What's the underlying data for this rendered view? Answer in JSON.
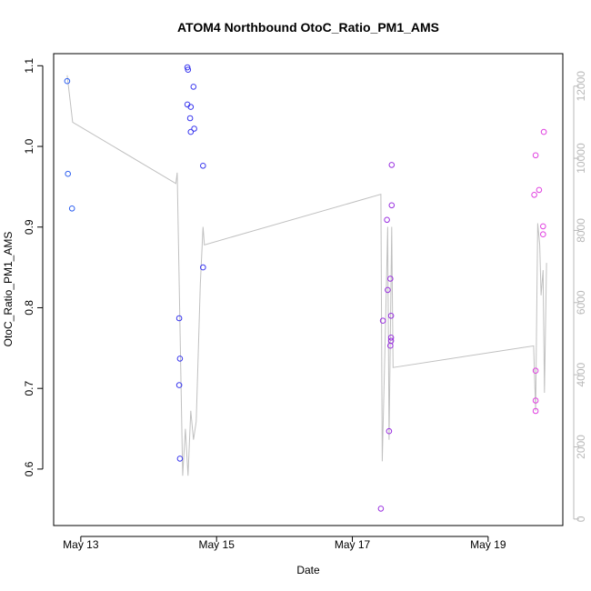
{
  "chart_data": {
    "type": "scatter",
    "title": "ATOM4 Northbound OtoC_Ratio_PM1_AMS",
    "xlabel": "Date",
    "ylabel": "OtoC_Ratio_PM1_AMS",
    "xlim": [
      12.6,
      20.1
    ],
    "ylim": [
      0.53,
      1.115
    ],
    "y2lim": [
      -180,
      12900
    ],
    "x_ticks": [
      13,
      15,
      17,
      19
    ],
    "x_tick_labels": [
      "May 13",
      "May 15",
      "May 17",
      "May 19"
    ],
    "y_ticks": [
      0.6,
      0.7,
      0.8,
      0.9,
      1.0,
      1.1
    ],
    "y_tick_labels": [
      "0.6",
      "0.7",
      "0.8",
      "0.9",
      "1.0",
      "1.1"
    ],
    "y2_ticks": [
      0,
      2000,
      4000,
      6000,
      8000,
      10000,
      12000
    ],
    "y2_tick_labels": [
      "0",
      "2000",
      "4000",
      "6000",
      "8000",
      "10000",
      "12000"
    ],
    "line_color": "#c0c0c0",
    "axis_color": "#000000",
    "right_axis_color": "#b8b8b8",
    "series": [
      {
        "name": "OtoC_Ratio_PM1_AMS",
        "points": [
          {
            "x": 12.8,
            "y": 1.081,
            "color": "#2d5ff0"
          },
          {
            "x": 12.81,
            "y": 0.966,
            "color": "#2d5ff0"
          },
          {
            "x": 12.87,
            "y": 0.923,
            "color": "#2d5ff0"
          },
          {
            "x": 14.57,
            "y": 1.098,
            "color": "#3a38ee"
          },
          {
            "x": 14.58,
            "y": 1.095,
            "color": "#3a38ee"
          },
          {
            "x": 14.66,
            "y": 1.074,
            "color": "#3a38ee"
          },
          {
            "x": 14.57,
            "y": 1.052,
            "color": "#3a38ee"
          },
          {
            "x": 14.62,
            "y": 1.049,
            "color": "#3a38ee"
          },
          {
            "x": 14.61,
            "y": 1.035,
            "color": "#3a38ee"
          },
          {
            "x": 14.67,
            "y": 1.022,
            "color": "#3a38ee"
          },
          {
            "x": 14.62,
            "y": 1.018,
            "color": "#3a38ee"
          },
          {
            "x": 14.8,
            "y": 0.976,
            "color": "#3a38ee"
          },
          {
            "x": 14.8,
            "y": 0.85,
            "color": "#3a38ee"
          },
          {
            "x": 14.45,
            "y": 0.787,
            "color": "#3a38ee"
          },
          {
            "x": 14.46,
            "y": 0.737,
            "color": "#3a38ee"
          },
          {
            "x": 14.45,
            "y": 0.704,
            "color": "#3a38ee"
          },
          {
            "x": 14.46,
            "y": 0.613,
            "color": "#3a38ee"
          },
          {
            "x": 17.58,
            "y": 0.977,
            "color": "#9a30e0"
          },
          {
            "x": 17.58,
            "y": 0.927,
            "color": "#9a30e0"
          },
          {
            "x": 17.51,
            "y": 0.909,
            "color": "#9a30e0"
          },
          {
            "x": 17.56,
            "y": 0.836,
            "color": "#9a30e0"
          },
          {
            "x": 17.52,
            "y": 0.822,
            "color": "#9a30e0"
          },
          {
            "x": 17.57,
            "y": 0.79,
            "color": "#9a30e0"
          },
          {
            "x": 17.45,
            "y": 0.784,
            "color": "#9a30e0"
          },
          {
            "x": 17.57,
            "y": 0.763,
            "color": "#9a30e0"
          },
          {
            "x": 17.57,
            "y": 0.759,
            "color": "#9a30e0"
          },
          {
            "x": 17.56,
            "y": 0.753,
            "color": "#9a30e0"
          },
          {
            "x": 17.54,
            "y": 0.647,
            "color": "#9a30e0"
          },
          {
            "x": 17.42,
            "y": 0.551,
            "color": "#9a30e0"
          },
          {
            "x": 19.82,
            "y": 1.018,
            "color": "#e040e0"
          },
          {
            "x": 19.7,
            "y": 0.989,
            "color": "#e040e0"
          },
          {
            "x": 19.75,
            "y": 0.946,
            "color": "#e040e0"
          },
          {
            "x": 19.68,
            "y": 0.94,
            "color": "#e040e0"
          },
          {
            "x": 19.81,
            "y": 0.901,
            "color": "#e040e0"
          },
          {
            "x": 19.81,
            "y": 0.891,
            "color": "#e040e0"
          },
          {
            "x": 19.7,
            "y": 0.722,
            "color": "#e040e0"
          },
          {
            "x": 19.7,
            "y": 0.685,
            "color": "#e040e0"
          },
          {
            "x": 19.7,
            "y": 0.672,
            "color": "#e040e0"
          }
        ]
      },
      {
        "name": "secondary",
        "axis": "right",
        "line": [
          [
            12.8,
            12300
          ],
          [
            12.88,
            11000
          ],
          [
            14.4,
            9300
          ],
          [
            14.42,
            9600
          ],
          [
            14.5,
            1200
          ],
          [
            14.54,
            2500
          ],
          [
            14.58,
            1200
          ],
          [
            14.62,
            3000
          ],
          [
            14.66,
            2200
          ],
          [
            14.7,
            2700
          ],
          [
            14.76,
            6500
          ],
          [
            14.8,
            8100
          ],
          [
            14.82,
            7600
          ],
          [
            17.42,
            9000
          ],
          [
            17.44,
            1600
          ],
          [
            17.49,
            5500
          ],
          [
            17.52,
            8100
          ],
          [
            17.54,
            2200
          ],
          [
            17.58,
            8100
          ],
          [
            17.6,
            4200
          ],
          [
            19.67,
            4800
          ],
          [
            19.7,
            3000
          ],
          [
            19.73,
            8200
          ],
          [
            19.76,
            7600
          ],
          [
            19.78,
            6200
          ],
          [
            19.81,
            6900
          ],
          [
            19.83,
            3500
          ],
          [
            19.86,
            7100
          ]
        ]
      }
    ]
  }
}
